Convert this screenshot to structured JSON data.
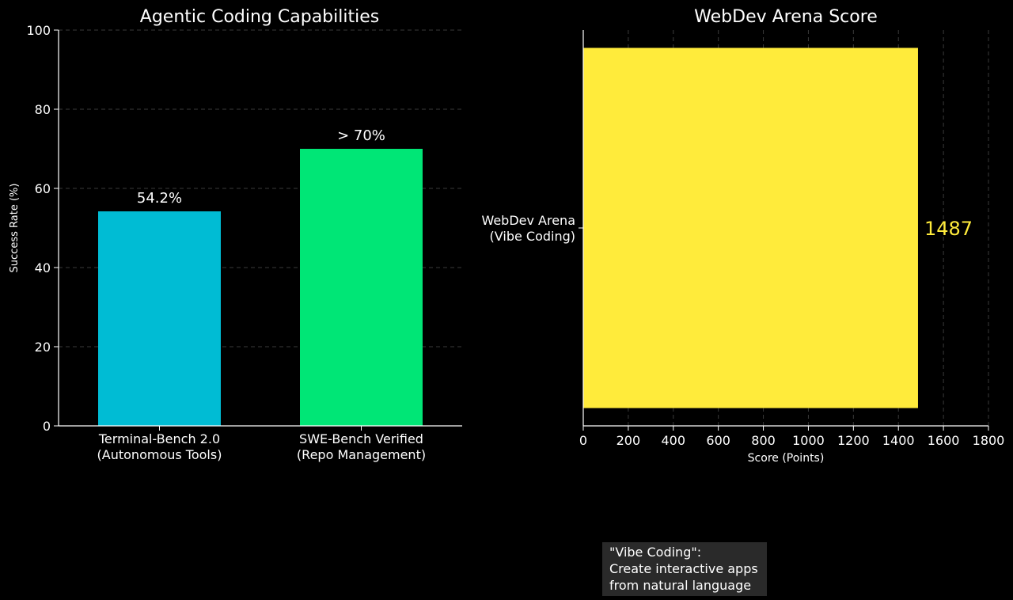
{
  "chart_data": [
    {
      "type": "bar",
      "title": "Agentic Coding Capabilities",
      "xlabel": "",
      "ylabel": "Success Rate (%)",
      "ylim": [
        0,
        100
      ],
      "yticks": [
        0,
        20,
        40,
        60,
        80,
        100
      ],
      "grid": "horizontal dashed",
      "categories": [
        [
          "Terminal-Bench 2.0",
          "(Autonomous Tools)"
        ],
        [
          "SWE-Bench Verified",
          "(Repo Management)"
        ]
      ],
      "values": [
        54.2,
        70
      ],
      "data_labels": [
        "54.2%",
        "> 70%"
      ],
      "colors": [
        "#00bcd4",
        "#00e676"
      ]
    },
    {
      "type": "bar",
      "orientation": "horizontal",
      "title": "WebDev Arena Score",
      "xlabel": "Score (Points)",
      "ylabel": "",
      "xlim": [
        0,
        1800
      ],
      "xticks": [
        0,
        200,
        400,
        600,
        800,
        1000,
        1200,
        1400,
        1600,
        1800
      ],
      "grid": "vertical dashed",
      "categories": [
        [
          "WebDev Arena",
          "(Vibe Coding)"
        ]
      ],
      "values": [
        1487
      ],
      "data_labels": [
        "1487"
      ],
      "colors": [
        "#ffeb3b"
      ]
    }
  ],
  "annotation": {
    "lines": [
      "\"Vibe Coding\":",
      "Create interactive apps",
      "from natural language"
    ]
  },
  "colors": {
    "background": "#000000",
    "text": "#ffffff",
    "grid": "#3a3a3a",
    "axis": "#ffffff",
    "callout_bg": "#2a2a2a",
    "score_label": "#ffeb3b"
  }
}
